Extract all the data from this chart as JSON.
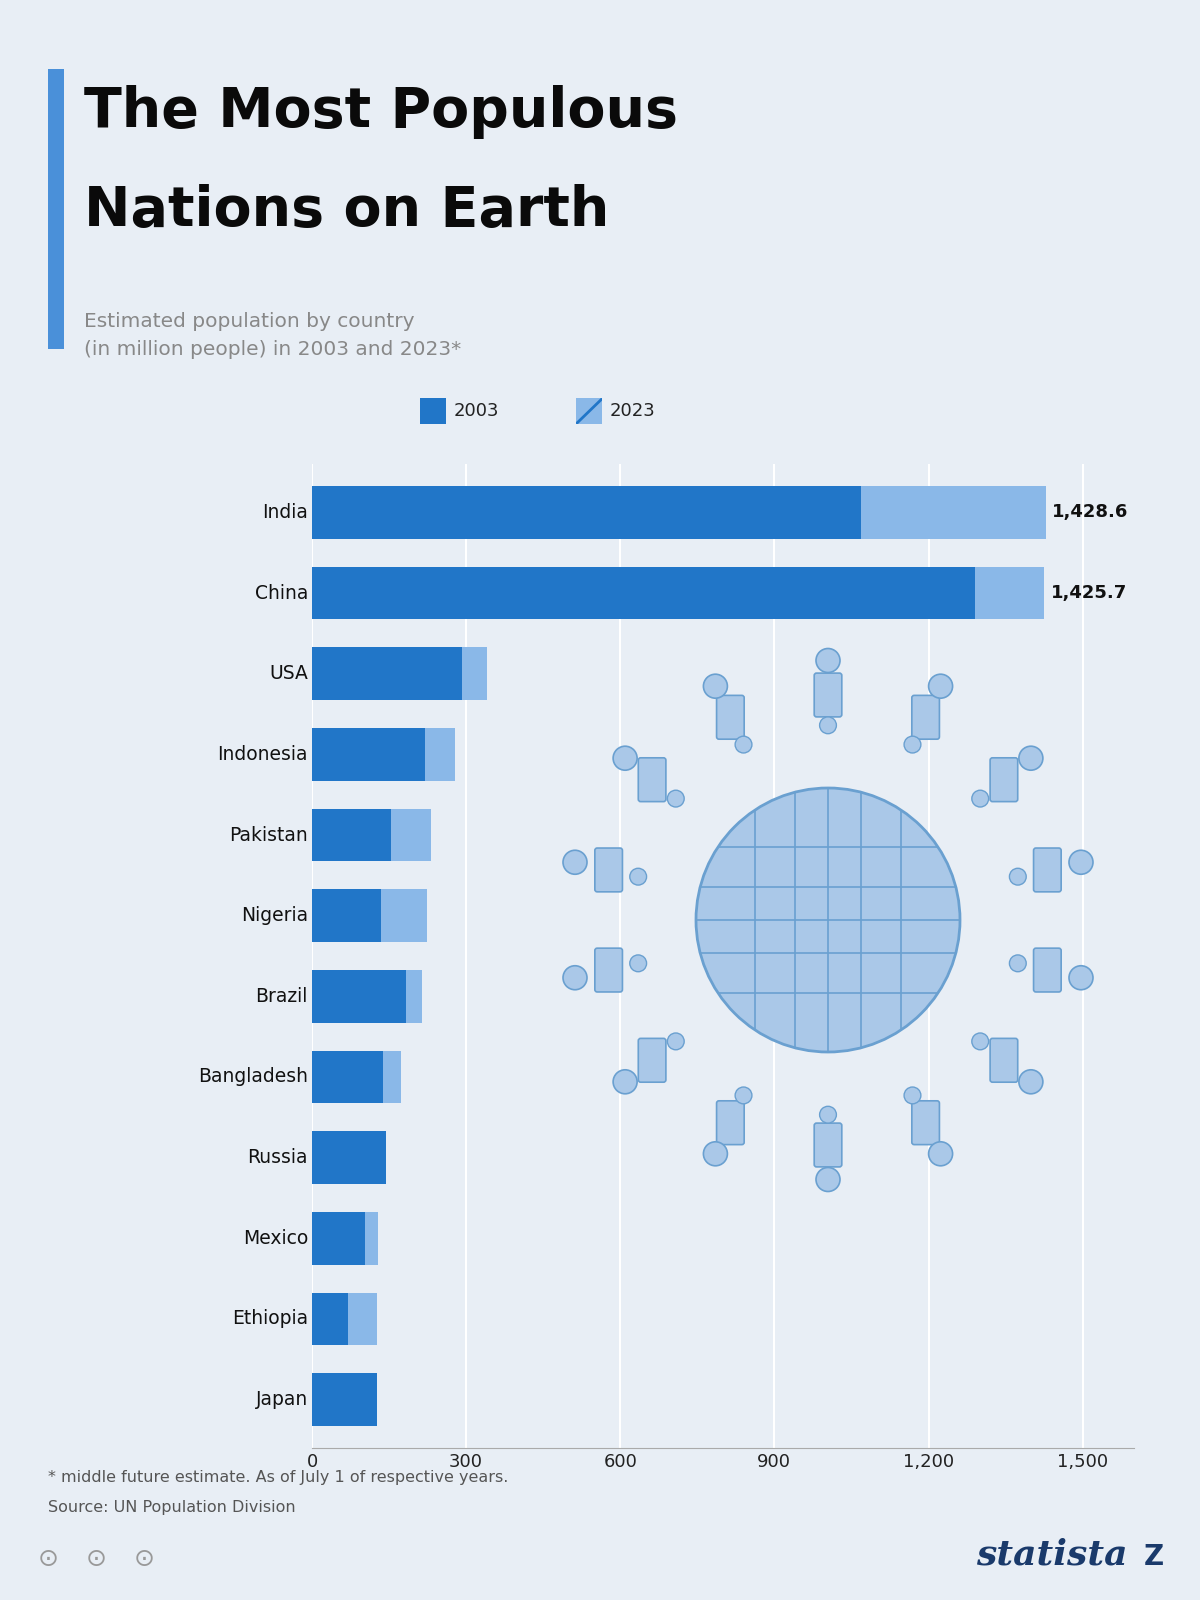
{
  "title_line1": "The Most Populous",
  "title_line2": "Nations on Earth",
  "subtitle": "Estimated population by country\n(in million people) in 2003 and 2023*",
  "footnote1": "* middle future estimate. As of July 1 of respective years.",
  "footnote2": "Source: UN Population Division",
  "bg_color": "#e8eef5",
  "bar_color_2003": "#2176c8",
  "bar_color_2023": "#8ab8e8",
  "title_accent_color": "#4a90d9",
  "countries": [
    "India",
    "China",
    "USA",
    "Indonesia",
    "Pakistan",
    "Nigeria",
    "Brazil",
    "Bangladesh",
    "Russia",
    "Mexico",
    "Ethiopia",
    "Japan"
  ],
  "values_2003": [
    1068.6,
    1290.0,
    291.0,
    220.0,
    153.0,
    134.0,
    182.0,
    138.0,
    144.5,
    104.0,
    71.0,
    127.0
  ],
  "values_2023": [
    1428.6,
    1425.7,
    340.0,
    278.0,
    231.0,
    223.0,
    215.0,
    173.0,
    144.4,
    128.0,
    127.0,
    124.0
  ],
  "value_labels": [
    "1,428.6",
    "1,425.7",
    "",
    "",
    "",
    "",
    "",
    "",
    "",
    "",
    "",
    ""
  ],
  "xlim": [
    0,
    1600
  ],
  "xticks": [
    0,
    300,
    600,
    900,
    1200,
    1500
  ],
  "legend_2003": "2003",
  "legend_2023": "2023",
  "statista_color": "#1a3a6b",
  "globe_color": "#aac8e8",
  "globe_edge_color": "#6aa0d0",
  "person_fill": "#aac8e8",
  "person_edge": "#6aa0d0"
}
